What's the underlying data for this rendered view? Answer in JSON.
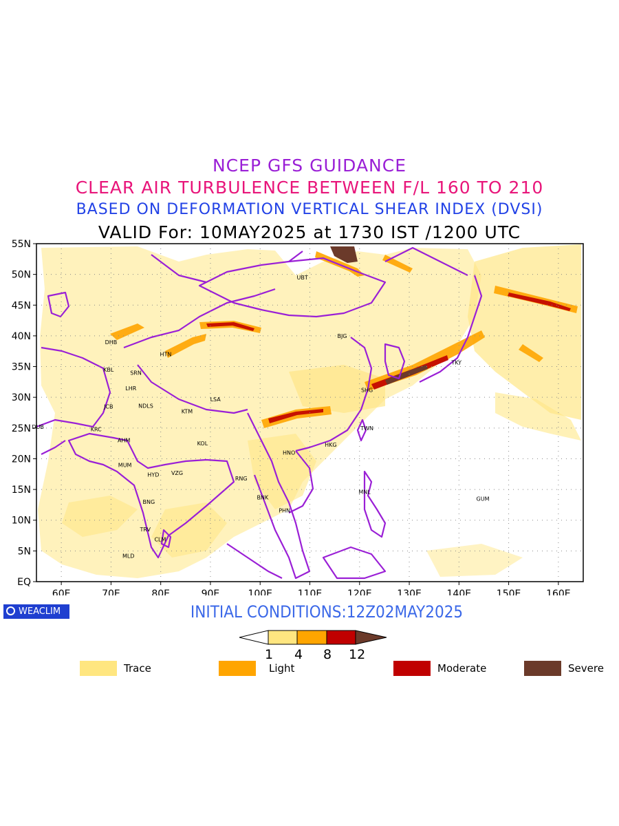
{
  "titles": {
    "line1": "NCEP GFS GUIDANCE",
    "line2": "CLEAR AIR TURBULENCE BETWEEN F/L 160 TO 210",
    "line3": "BASED ON DEFORMATION VERTICAL SHEAR INDEX (DVSI)",
    "line4": "VALID For: 10MAY2025 at 1730 IST /1200 UTC"
  },
  "map": {
    "lat_ticks": [
      "55N",
      "50N",
      "45N",
      "40N",
      "35N",
      "30N",
      "25N",
      "20N",
      "15N",
      "10N",
      "5N",
      "EQ"
    ],
    "lon_ticks": [
      "60E",
      "70E",
      "80E",
      "90E",
      "100E",
      "110E",
      "120E",
      "130E",
      "140E",
      "150E",
      "160E"
    ],
    "lon_range": [
      55,
      165
    ],
    "lat_range": [
      0,
      55
    ],
    "gridlines": true,
    "stations": [
      {
        "code": "UBT",
        "lon": 108.5,
        "lat": 49.5
      },
      {
        "code": "DHB",
        "lon": 70.0,
        "lat": 39.0
      },
      {
        "code": "HTN",
        "lon": 81.0,
        "lat": 37.0
      },
      {
        "code": "BJG",
        "lon": 116.5,
        "lat": 40.0
      },
      {
        "code": "KBL",
        "lon": 69.5,
        "lat": 34.5
      },
      {
        "code": "SRN",
        "lon": 75.0,
        "lat": 34.0
      },
      {
        "code": "TKY",
        "lon": 139.5,
        "lat": 35.7
      },
      {
        "code": "LHR",
        "lon": 74.0,
        "lat": 31.5
      },
      {
        "code": "SHG",
        "lon": 121.5,
        "lat": 31.2
      },
      {
        "code": "LSA",
        "lon": 91.0,
        "lat": 29.7
      },
      {
        "code": "JCB",
        "lon": 69.5,
        "lat": 28.5
      },
      {
        "code": "NDLS",
        "lon": 77.0,
        "lat": 28.6
      },
      {
        "code": "KTM",
        "lon": 85.3,
        "lat": 27.7
      },
      {
        "code": "DUB",
        "lon": 55.3,
        "lat": 25.2
      },
      {
        "code": "TWN",
        "lon": 121.5,
        "lat": 25.0
      },
      {
        "code": "KRC",
        "lon": 67.0,
        "lat": 24.8
      },
      {
        "code": "AHM",
        "lon": 72.6,
        "lat": 23.0
      },
      {
        "code": "KOL",
        "lon": 88.4,
        "lat": 22.5
      },
      {
        "code": "HKG",
        "lon": 114.2,
        "lat": 22.3
      },
      {
        "code": "HNO",
        "lon": 105.8,
        "lat": 21.0
      },
      {
        "code": "MUM",
        "lon": 72.8,
        "lat": 19.0
      },
      {
        "code": "HYD",
        "lon": 78.5,
        "lat": 17.4
      },
      {
        "code": "VZG",
        "lon": 83.3,
        "lat": 17.7
      },
      {
        "code": "RNG",
        "lon": 96.2,
        "lat": 16.8
      },
      {
        "code": "MNL",
        "lon": 121.0,
        "lat": 14.6
      },
      {
        "code": "BNK",
        "lon": 100.5,
        "lat": 13.7
      },
      {
        "code": "GUM",
        "lon": 144.8,
        "lat": 13.5
      },
      {
        "code": "BNG",
        "lon": 77.6,
        "lat": 13.0
      },
      {
        "code": "PHN",
        "lon": 104.9,
        "lat": 11.6
      },
      {
        "code": "TRV",
        "lon": 76.9,
        "lat": 8.5
      },
      {
        "code": "CLM",
        "lon": 79.9,
        "lat": 6.9
      },
      {
        "code": "MLD",
        "lon": 73.5,
        "lat": 4.2
      }
    ]
  },
  "badge": {
    "label": "WEACLIM"
  },
  "initial_conditions": "INITIAL CONDITIONS:12Z02MAY2025",
  "colorbar": {
    "ticks": [
      "1",
      "4",
      "8",
      "12"
    ],
    "colors": [
      "#ffffff",
      "#ffe680",
      "#ffa500",
      "#c00000",
      "#6b3a2a"
    ]
  },
  "legend": [
    {
      "label": "Trace",
      "color": "#ffe680"
    },
    {
      "label": "Light",
      "color": "#ffa500"
    },
    {
      "label": "Moderate",
      "color": "#c00000"
    },
    {
      "label": "Severe",
      "color": "#6b3a2a"
    }
  ],
  "colors": {
    "coast": "#9a1fd6",
    "trace": "#ffe680",
    "light": "#ffa500",
    "moderate": "#c00000",
    "severe": "#6b3a2a"
  }
}
